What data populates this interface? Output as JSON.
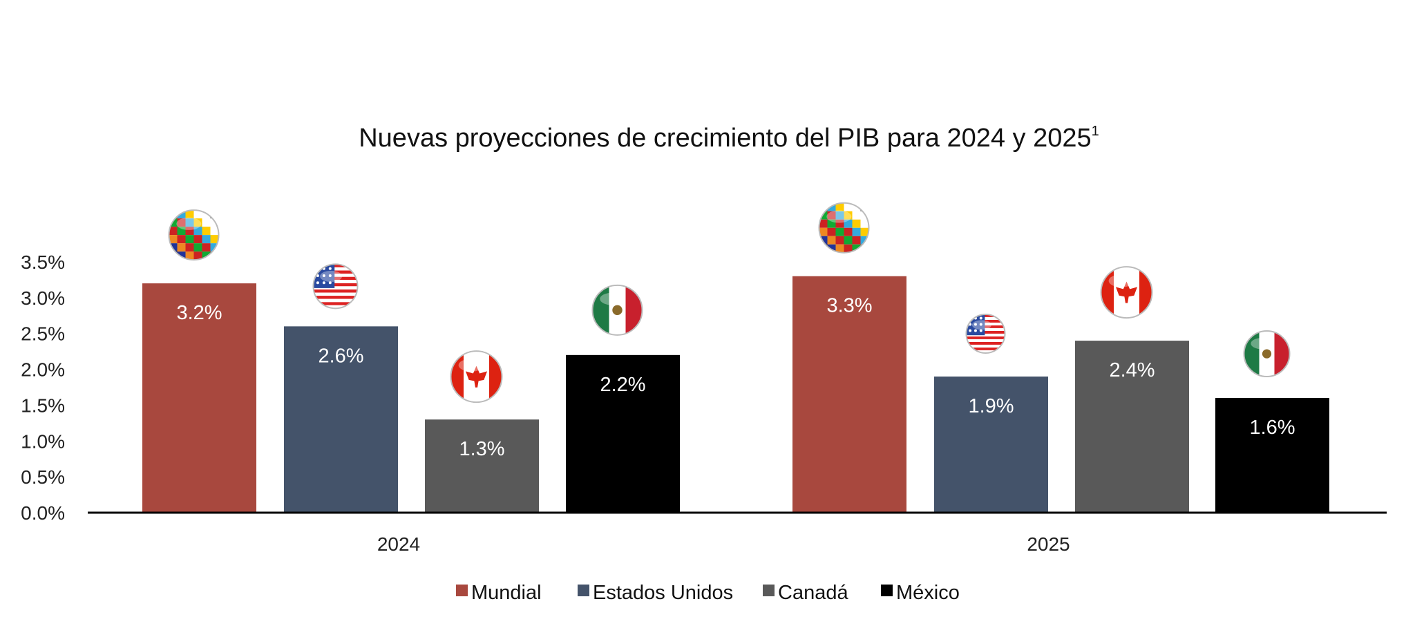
{
  "chart_data": {
    "type": "bar",
    "title": "Nuevas proyecciones de crecimiento del PIB para 2024 y 2025",
    "title_superscript": "1",
    "categories": [
      "2024",
      "2025"
    ],
    "series": [
      {
        "name": "Mundial",
        "values": [
          3.2,
          3.3
        ],
        "labels": [
          "3.2%",
          "3.3%"
        ],
        "color": "#A8483E",
        "icon": "world-flags-globe-icon"
      },
      {
        "name": "Estados Unidos",
        "values": [
          2.6,
          1.9
        ],
        "labels": [
          "2.6%",
          "1.9%"
        ],
        "color": "#44536A",
        "icon": "usa-flag-icon"
      },
      {
        "name": "Canadá",
        "values": [
          1.3,
          2.4
        ],
        "labels": [
          "1.3%",
          "2.4%"
        ],
        "color": "#595959",
        "icon": "canada-flag-icon"
      },
      {
        "name": "México",
        "values": [
          2.2,
          1.6
        ],
        "labels": [
          "2.2%",
          "1.6%"
        ],
        "color": "#000000",
        "icon": "mexico-flag-icon"
      }
    ],
    "ylim": [
      0,
      3.5
    ],
    "yticks": [
      "0.0%",
      "0.5%",
      "1.0%",
      "1.5%",
      "2.0%",
      "2.5%",
      "3.0%",
      "3.5%"
    ],
    "grid": false,
    "legend_position": "bottom"
  }
}
